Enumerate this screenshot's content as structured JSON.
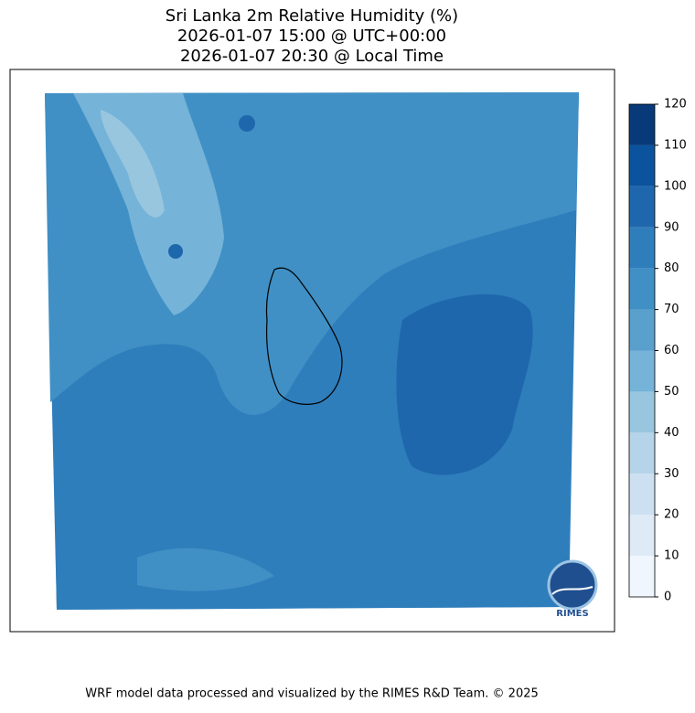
{
  "title": [
    "Sri Lanka 2m Relative Humidity (%)",
    "2026-01-07 15:00 @ UTC+00:00",
    "2026-01-07 20:30 @ Local Time"
  ],
  "colorbar": {
    "ticks": [
      0,
      10,
      20,
      30,
      40,
      50,
      60,
      70,
      80,
      90,
      100,
      110,
      120
    ],
    "colors": [
      "#f0f6fd",
      "#deebf7",
      "#cde0f1",
      "#b5d4e9",
      "#98c6df",
      "#75b3d8",
      "#5aa0cd",
      "#4090c5",
      "#2f7ebc",
      "#1f67ac",
      "#0b539d",
      "#083a7a"
    ]
  },
  "logo": "RIMES",
  "footer": "WRF model data processed and visualized by the RIMES R&D Team. © 2025"
}
